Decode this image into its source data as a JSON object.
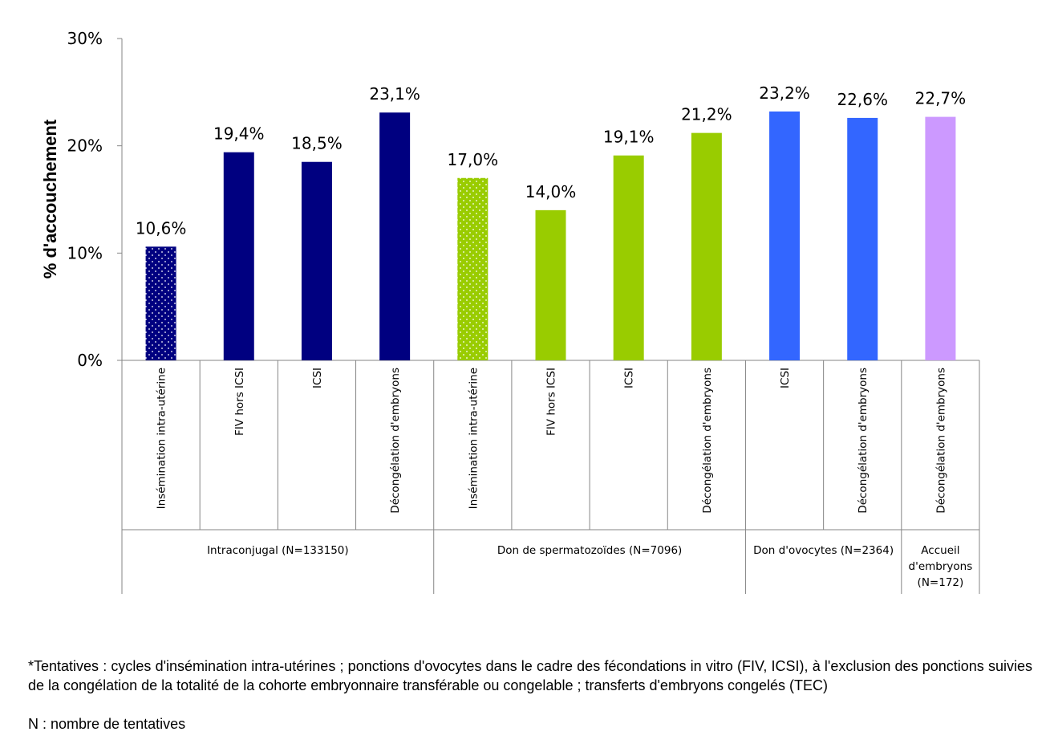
{
  "chart_data": {
    "type": "bar",
    "ylabel": "% d'accouchement",
    "ylim": [
      0,
      30
    ],
    "yticks": [
      0,
      10,
      20,
      30
    ],
    "ytick_labels": [
      "0%",
      "10%",
      "20%",
      "30%"
    ],
    "grid": false,
    "categories": [
      "Insémination intra-utérine",
      "FIV hors ICSI",
      "ICSI",
      "Décongélation d'embryons",
      "Insémination intra-utérine",
      "FIV hors ICSI",
      "ICSI",
      "Décongélation d'embryons",
      "ICSI",
      "Décongélation d'embryons",
      "Décongélation d'embryons"
    ],
    "values": [
      10.6,
      19.4,
      18.5,
      23.1,
      17.0,
      14.0,
      19.1,
      21.2,
      23.2,
      22.6,
      22.7
    ],
    "value_labels": [
      "10,6%",
      "19,4%",
      "18,5%",
      "23,1%",
      "17,0%",
      "14,0%",
      "19,1%",
      "21,2%",
      "23,2%",
      "22,6%",
      "22,7%"
    ],
    "bar_colors": [
      "#000080",
      "#000080",
      "#000080",
      "#000080",
      "#99CC00",
      "#99CC00",
      "#99CC00",
      "#99CC00",
      "#3366FF",
      "#3366FF",
      "#CC99FF"
    ],
    "bar_patterns": [
      "dots",
      "solid",
      "solid",
      "solid",
      "dots",
      "solid",
      "solid",
      "solid",
      "solid",
      "solid",
      "solid"
    ],
    "groups": [
      {
        "label_lines": [
          "Intraconjugal (N=133150)"
        ],
        "start": 0,
        "count": 4
      },
      {
        "label_lines": [
          "Don de spermatozoïdes (N=7096)"
        ],
        "start": 4,
        "count": 4
      },
      {
        "label_lines": [
          "Don d'ovocytes (N=2364)"
        ],
        "start": 8,
        "count": 2
      },
      {
        "label_lines": [
          "Accueil",
          "d'embryons",
          "(N=172)"
        ],
        "start": 10,
        "count": 1
      }
    ]
  },
  "footnote": {
    "text": "*Tentatives : cycles d'insémination intra-utérines ; ponctions d'ovocytes dans le cadre des fécondations in vitro (FIV, ICSI), à l'exclusion des ponctions suivies de la congélation de la totalité de la cohorte embryonnaire transférable ou congelable ; transferts d'embryons congelés (TEC)",
    "n_text": "N : nombre de tentatives"
  }
}
